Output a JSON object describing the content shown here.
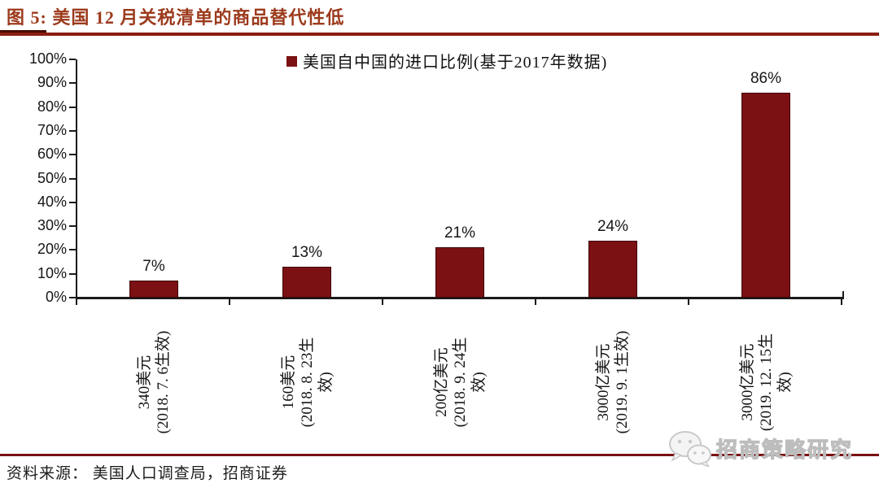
{
  "figure_title": "图 5:  美国 12 月关税清单的商品替代性低",
  "source_note": "资料来源： 美国人口调查局，招商证券",
  "watermark_text": "招商策略研究",
  "watermark_icon": "wechat-bubbles",
  "colors": {
    "bar": "#7B1113",
    "title_text": "#9C3A1C",
    "title_rule": "#8B1D12",
    "footer_rule": "#7B1113",
    "axis": "#1a1a1a",
    "watermark_gray": "#bdbdbd"
  },
  "chart_data": {
    "type": "bar",
    "title": "图 5: 美国 12 月关税清单的商品替代性低",
    "legend": "美国自中国的进口比例(基于2017年数据)",
    "legend_position": "top-center",
    "categories": [
      "340美元 (2018.7.6生效)",
      "160美元 (2018.8.23生效)",
      "200亿美元 (2018.9.24生效)",
      "3000亿美元 (2019.9.1生效)",
      "3000亿美元 (2019.12.15生效)"
    ],
    "category_label_lines": [
      [
        "340美元",
        "(2018. 7. 6生效)"
      ],
      [
        "160美元",
        "(2018. 8. 23生",
        "效)"
      ],
      [
        "200亿美元",
        "(2018. 9. 24生",
        "效)"
      ],
      [
        "3000亿美元",
        "(2019. 9. 1生效)"
      ],
      [
        "3000亿美元",
        "(2019. 12. 15生",
        "效)"
      ]
    ],
    "values": [
      7,
      13,
      21,
      24,
      86
    ],
    "data_labels": [
      "7%",
      "13%",
      "21%",
      "24%",
      "86%"
    ],
    "xlabel": "",
    "ylabel": "",
    "ylim": [
      0,
      100
    ],
    "ytick_step": 10,
    "ytick_labels": [
      "0%",
      "10%",
      "20%",
      "30%",
      "40%",
      "50%",
      "60%",
      "70%",
      "80%",
      "90%",
      "100%"
    ],
    "grid": false,
    "bar_color": "#7B1113"
  }
}
